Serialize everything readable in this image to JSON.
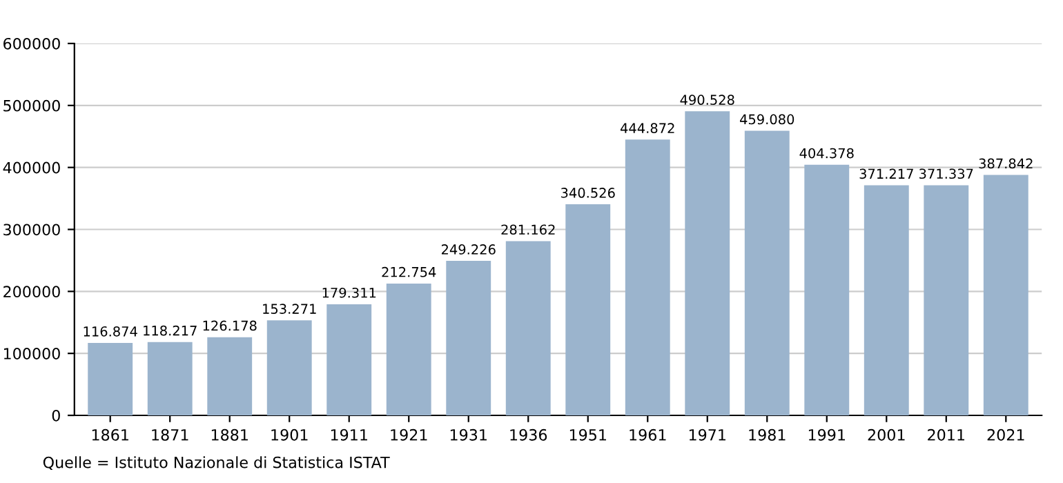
{
  "chart_data": {
    "type": "bar",
    "categories": [
      "1861",
      "1871",
      "1881",
      "1901",
      "1911",
      "1921",
      "1931",
      "1936",
      "1951",
      "1961",
      "1971",
      "1981",
      "1991",
      "2001",
      "2011",
      "2021"
    ],
    "values": [
      116874,
      118217,
      126178,
      153271,
      179311,
      212754,
      249226,
      281162,
      340526,
      444872,
      490528,
      459080,
      404378,
      371217,
      371337,
      387842
    ],
    "value_labels": [
      "116.874",
      "118.217",
      "126.178",
      "153.271",
      "179.311",
      "212.754",
      "249.226",
      "281.162",
      "340.526",
      "444.872",
      "490.528",
      "459.080",
      "404.378",
      "371.217",
      "371.337",
      "387.842"
    ],
    "color": "#9bb4cd",
    "ylim": [
      0,
      600000
    ],
    "yticks": [
      0,
      100000,
      200000,
      300000,
      400000,
      500000,
      600000
    ],
    "grid": "y",
    "annotations": [
      "Quelle = Istituto Nazionale di Statistica ISTAT"
    ]
  }
}
